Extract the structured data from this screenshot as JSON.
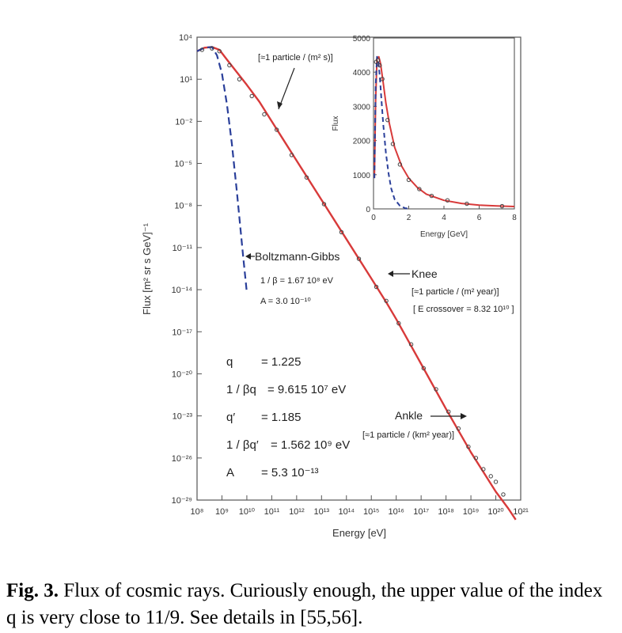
{
  "chart_data": [
    {
      "type": "line",
      "xlabel": "Energy [eV]",
      "ylabel": "Flux [m² sr s GeV]⁻¹",
      "x_scale": "log",
      "y_scale": "log",
      "xlim_exp": [
        8,
        21
      ],
      "ylim_exp": [
        -29,
        4
      ],
      "x_tick_labels": [
        "10⁸",
        "10⁹",
        "10¹⁰",
        "10¹¹",
        "10¹²",
        "10¹³",
        "10¹⁴",
        "10¹⁵",
        "10¹⁶",
        "10¹⁷",
        "10¹⁸",
        "10¹⁹",
        "10²⁰",
        "10²¹"
      ],
      "y_tick_labels": [
        "10⁴",
        "10¹",
        "10⁻²",
        "10⁻⁵",
        "10⁻⁸",
        "10⁻¹¹",
        "10⁻¹⁴",
        "10⁻¹⁷",
        "10⁻²⁰",
        "10⁻²³",
        "10⁻²⁶",
        "10⁻²⁹"
      ],
      "grid": false,
      "series": [
        {
          "name": "",
          "style": "solid",
          "color": "#d83a3a",
          "log_x": [
            8.0,
            8.3,
            8.6,
            8.9,
            9.2,
            9.6,
            10.0,
            10.5,
            11.0,
            11.5,
            12.0,
            13.0,
            14.0,
            15.0,
            15.6,
            16.0,
            17.0,
            18.0,
            19.0,
            19.5,
            20.0,
            20.5,
            20.8
          ],
          "log_y": [
            3.0,
            3.25,
            3.3,
            3.1,
            2.4,
            1.5,
            0.6,
            -0.6,
            -2.0,
            -3.4,
            -4.8,
            -7.6,
            -10.4,
            -13.2,
            -14.9,
            -16.1,
            -19.3,
            -22.5,
            -25.6,
            -27.0,
            -28.4,
            -29.6,
            -30.4
          ]
        },
        {
          "name": "Boltzmann-Gibbs",
          "style": "dashed",
          "color": "#2a3f9a",
          "log_x": [
            8.0,
            8.3,
            8.6,
            8.8,
            9.0,
            9.2,
            9.4,
            9.6,
            9.75,
            9.85,
            9.95,
            10.0
          ],
          "log_y": [
            3.0,
            3.25,
            3.3,
            2.7,
            1.4,
            -0.8,
            -3.6,
            -7.0,
            -9.8,
            -11.6,
            -13.3,
            -14.2
          ]
        }
      ],
      "points": {
        "name": "",
        "color": "#444444",
        "log_x": [
          8.2,
          8.6,
          8.9,
          9.3,
          9.7,
          10.2,
          10.7,
          11.2,
          11.8,
          12.4,
          13.1,
          13.8,
          14.5,
          15.2,
          15.6,
          16.1,
          16.6,
          17.1,
          17.6,
          18.1,
          18.5,
          18.9,
          19.2,
          19.5,
          19.8,
          20.0,
          20.3
        ],
        "log_y": [
          3.1,
          3.2,
          3.0,
          2.0,
          1.0,
          -0.2,
          -1.5,
          -2.6,
          -4.4,
          -6.0,
          -7.9,
          -9.9,
          -11.8,
          -13.8,
          -14.8,
          -16.4,
          -17.9,
          -19.6,
          -21.1,
          -22.7,
          -23.9,
          -25.2,
          -26.0,
          -26.8,
          -27.3,
          -27.7,
          -28.6
        ]
      },
      "annotations": [
        {
          "text": "[≈1 particle / (m² s)]"
        },
        {
          "text": "Boltzmann-Gibbs"
        },
        {
          "text": "1 / β = 1.67 10⁸ eV"
        },
        {
          "text": "A     = 3.0 10⁻¹⁰"
        },
        {
          "text": "Knee"
        },
        {
          "text": "[≈1 particle / (m² year)]"
        },
        {
          "text": "[ E crossover = 8.32 10¹⁰ ]"
        },
        {
          "text": "Ankle"
        },
        {
          "text": "[≈1 particle / (km² year)]"
        }
      ],
      "params": [
        {
          "label": "q",
          "value": "= 1.225"
        },
        {
          "label": "1 / βq",
          "value": "= 9.615 10⁷ eV"
        },
        {
          "label": "q′",
          "value": "= 1.185"
        },
        {
          "label": "1 / βq′",
          "value": "= 1.562 10⁹ eV"
        },
        {
          "label": "A",
          "value": "= 5.3 10⁻¹³"
        }
      ]
    },
    {
      "type": "line",
      "xlabel": "Energy [GeV]",
      "ylabel": "Flux",
      "xlim": [
        0,
        8
      ],
      "ylim": [
        0,
        5000
      ],
      "x_ticks": [
        0,
        2,
        4,
        6,
        8
      ],
      "y_ticks": [
        0,
        1000,
        2000,
        3000,
        4000,
        5000
      ],
      "series": [
        {
          "name": "",
          "style": "solid",
          "color": "#d83a3a",
          "x": [
            0.05,
            0.12,
            0.2,
            0.3,
            0.4,
            0.55,
            0.7,
            0.9,
            1.2,
            1.6,
            2.0,
            2.5,
            3.0,
            4.0,
            5.0,
            6.0,
            7.0,
            8.0
          ],
          "y": [
            900,
            3200,
            4400,
            4450,
            4250,
            3700,
            3100,
            2500,
            1800,
            1250,
            900,
            620,
            430,
            250,
            160,
            110,
            85,
            70
          ]
        },
        {
          "name": "",
          "style": "dashed",
          "color": "#2a3f9a",
          "x": [
            0.05,
            0.12,
            0.2,
            0.28,
            0.36,
            0.45,
            0.55,
            0.7,
            0.85,
            1.0,
            1.2,
            1.5,
            1.8,
            2.0
          ],
          "y": [
            900,
            3600,
            4450,
            4300,
            3850,
            3200,
            2500,
            1650,
            1050,
            600,
            280,
            90,
            20,
            5
          ]
        }
      ],
      "points": {
        "name": "",
        "color": "#444444",
        "x": [
          0.15,
          0.25,
          0.35,
          0.5,
          0.8,
          1.1,
          1.5,
          2.0,
          2.6,
          3.3,
          4.2,
          5.3,
          7.3
        ],
        "y": [
          4300,
          4350,
          4200,
          3800,
          2600,
          1900,
          1300,
          850,
          580,
          380,
          250,
          150,
          80
        ]
      }
    }
  ],
  "caption": {
    "label": "Fig. 3.",
    "text": " Flux of cosmic rays. Curiously enough, the upper value of the index q is very close to 11/9. See details in [55,56]."
  }
}
